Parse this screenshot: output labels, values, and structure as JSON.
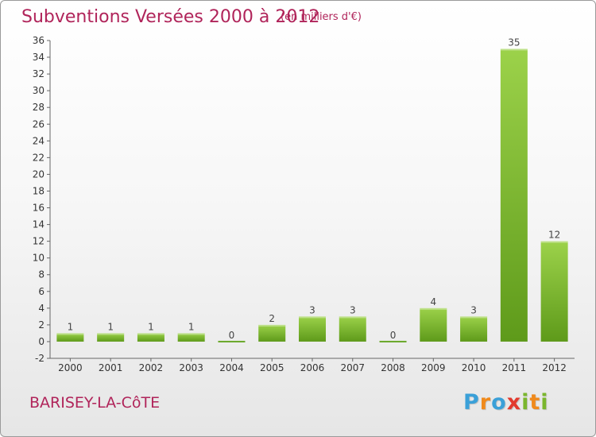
{
  "chart_data": {
    "type": "bar",
    "title": "Subventions Versées 2000 à 2012",
    "subtitle": "(en milliers d'€)",
    "categories": [
      "2000",
      "2001",
      "2002",
      "2003",
      "2004",
      "2005",
      "2006",
      "2007",
      "2008",
      "2009",
      "2010",
      "2011",
      "2012"
    ],
    "values": [
      1,
      1,
      1,
      1,
      0,
      2,
      3,
      3,
      0,
      4,
      3,
      35,
      12
    ],
    "ylim": [
      -2,
      36
    ],
    "yticks": [
      -2,
      0,
      2,
      4,
      6,
      8,
      10,
      12,
      14,
      16,
      18,
      20,
      22,
      24,
      26,
      28,
      30,
      32,
      34,
      36
    ],
    "grid": false,
    "bar_color": "#7fbf3a"
  },
  "footer": {
    "commune": "BARISEY-LA-CôTE",
    "logo_letters": [
      "P",
      "r",
      "o",
      "x",
      "i",
      "t",
      "i"
    ],
    "logo_colors": [
      "#3aa0d8",
      "#f08a1c",
      "#3aa0d8",
      "#e23a2e",
      "#7ab62d",
      "#f08a1c",
      "#7ab62d"
    ]
  }
}
